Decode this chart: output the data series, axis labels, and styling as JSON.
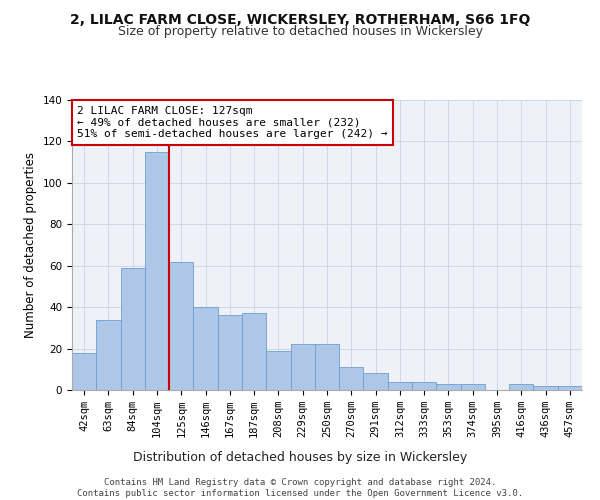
{
  "title1": "2, LILAC FARM CLOSE, WICKERSLEY, ROTHERHAM, S66 1FQ",
  "title2": "Size of property relative to detached houses in Wickersley",
  "xlabel": "Distribution of detached houses by size in Wickersley",
  "ylabel": "Number of detached properties",
  "categories": [
    "42sqm",
    "63sqm",
    "84sqm",
    "104sqm",
    "125sqm",
    "146sqm",
    "167sqm",
    "187sqm",
    "208sqm",
    "229sqm",
    "250sqm",
    "270sqm",
    "291sqm",
    "312sqm",
    "333sqm",
    "353sqm",
    "374sqm",
    "395sqm",
    "416sqm",
    "436sqm",
    "457sqm"
  ],
  "values": [
    18,
    34,
    59,
    115,
    62,
    40,
    36,
    37,
    19,
    22,
    22,
    11,
    8,
    4,
    4,
    3,
    3,
    0,
    3,
    2,
    2
  ],
  "bar_color": "#aec6e8",
  "bar_edge_color": "#6aa0cc",
  "vline_color": "#cc0000",
  "vline_index": 4,
  "annotation_text": "2 LILAC FARM CLOSE: 127sqm\n← 49% of detached houses are smaller (232)\n51% of semi-detached houses are larger (242) →",
  "annotation_box_color": "#ffffff",
  "annotation_box_edge_color": "#cc0000",
  "ylim": [
    0,
    140
  ],
  "yticks": [
    0,
    20,
    40,
    60,
    80,
    100,
    120,
    140
  ],
  "grid_color": "#d0d8e8",
  "background_color": "#eef2f8",
  "footer_text": "Contains HM Land Registry data © Crown copyright and database right 2024.\nContains public sector information licensed under the Open Government Licence v3.0.",
  "title1_fontsize": 10,
  "title2_fontsize": 9,
  "xlabel_fontsize": 9,
  "ylabel_fontsize": 8.5,
  "tick_fontsize": 7.5,
  "annotation_fontsize": 8,
  "footer_fontsize": 6.5
}
